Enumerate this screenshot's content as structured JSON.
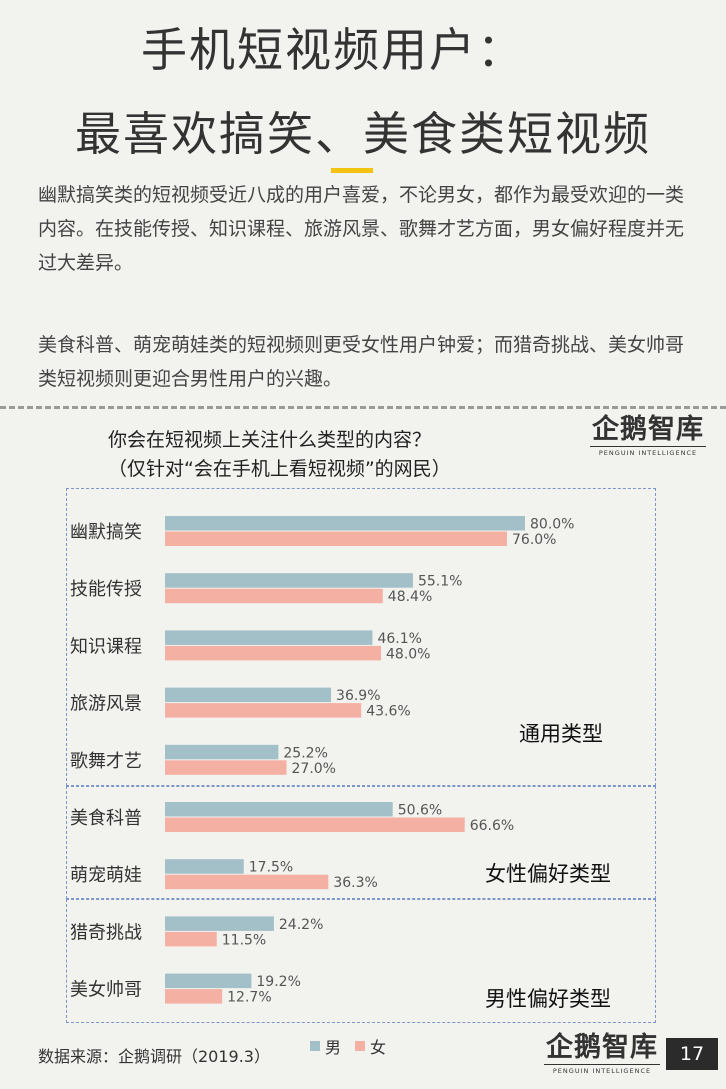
{
  "header": {
    "title_line1": "手机短视频用户：",
    "title_line2": "最喜欢搞笑、美食类短视频"
  },
  "intro": {
    "paragraph1": "幽默搞笑类的短视频受近八成的用户喜爱，不论男女，都作为最受欢迎的一类内容。在技能传授、知识课程、旅游风景、歌舞才艺方面，男女偏好程度并无过大差异。",
    "paragraph2": "美食科普、萌宠萌娃类的短视频则更受女性用户钟爱；而猎奇挑战、美女帅哥类短视频则更迎合男性用户的兴趣。"
  },
  "logo": {
    "text": "企鹅智库",
    "subtext": "PENGUIN INTELLIGENCE"
  },
  "chart_data": {
    "type": "bar",
    "orientation": "horizontal",
    "title_line1": "你会在短视频上关注什么类型的内容？",
    "title_line2": "（仅针对“会在手机上看短视频”的网民）",
    "categories": [
      "幽默搞笑",
      "技能传授",
      "知识课程",
      "旅游风景",
      "歌舞才艺",
      "美食科普",
      "萌宠萌娃",
      "猎奇挑战",
      "美女帅哥"
    ],
    "series": [
      {
        "name": "男",
        "color": "#a3bfc8",
        "values": [
          80.0,
          55.1,
          46.1,
          36.9,
          25.2,
          50.6,
          17.5,
          24.2,
          19.2
        ]
      },
      {
        "name": "女",
        "color": "#f5b0a4",
        "values": [
          76.0,
          48.4,
          48.0,
          43.6,
          27.0,
          66.6,
          36.3,
          11.5,
          12.7
        ]
      }
    ],
    "value_format": "percent_1dp",
    "xlim": [
      0,
      100
    ],
    "grid": false,
    "legend": "bottom",
    "groups": [
      {
        "label": "通用类型",
        "categories": [
          "幽默搞笑",
          "技能传授",
          "知识课程",
          "旅游风景",
          "歌舞才艺"
        ]
      },
      {
        "label": "女性偏好类型",
        "categories": [
          "美食科普",
          "萌宠萌娃"
        ]
      },
      {
        "label": "男性偏好类型",
        "categories": [
          "猎奇挑战",
          "美女帅哥"
        ]
      }
    ]
  },
  "footer": {
    "source": "数据来源：企鹅调研（2019.3）",
    "page_number": "17"
  }
}
